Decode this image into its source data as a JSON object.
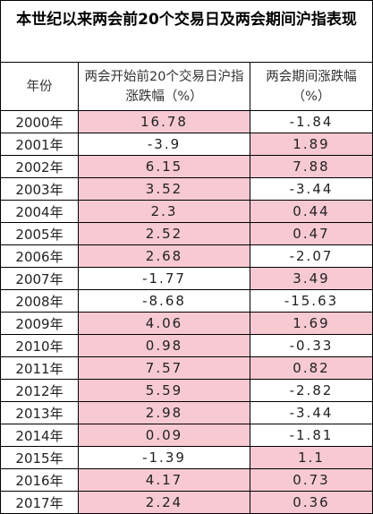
{
  "title": "本世纪以来两会前20个交易日及两会期间沪指表现",
  "table": {
    "header": [
      "年份",
      "两会开始前20个交易日沪指涨跌幅（%）",
      "两会期间涨跌幅（%）"
    ],
    "highlight_color": "#f7c9d2",
    "rows": [
      [
        "2000年",
        16.78,
        -1.84
      ],
      [
        "2001年",
        -3.9,
        1.89
      ],
      [
        "2002年",
        6.15,
        7.88
      ],
      [
        "2003年",
        3.52,
        -3.44
      ],
      [
        "2004年",
        2.3,
        0.44
      ],
      [
        "2005年",
        2.52,
        0.47
      ],
      [
        "2006年",
        2.68,
        -2.07
      ],
      [
        "2007年",
        -1.77,
        3.49
      ],
      [
        "2008年",
        -8.68,
        -15.63
      ],
      [
        "2009年",
        4.06,
        1.69
      ],
      [
        "2010年",
        0.98,
        -0.33
      ],
      [
        "2011年",
        7.57,
        0.82
      ],
      [
        "2012年",
        5.59,
        -2.82
      ],
      [
        "2013年",
        2.98,
        -3.44
      ],
      [
        "2014年",
        0.09,
        -1.81
      ],
      [
        "2015年",
        -1.39,
        1.1
      ],
      [
        "2016年",
        4.17,
        0.73
      ],
      [
        "2017年",
        2.24,
        0.36
      ]
    ]
  }
}
